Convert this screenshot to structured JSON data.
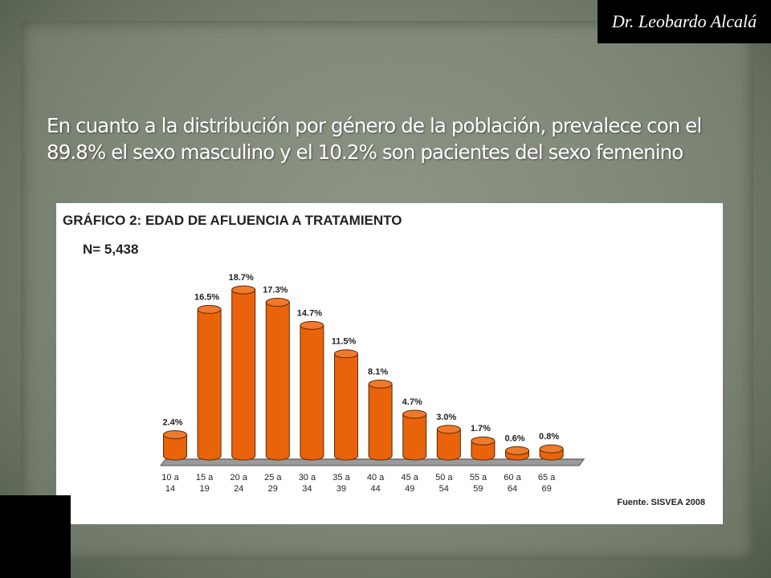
{
  "slide": {
    "author": "Dr. Leobardo Alcalá",
    "headline_line1": "En cuanto a la distribución por género de la población, prevalece con el",
    "headline_line2": "89.8% el sexo masculino y el 10.2% son pacientes del sexo femenino"
  },
  "colors": {
    "bar_fill": "#e8630a",
    "bar_top": "#f07a2a",
    "bar_stroke": "#5a2a05",
    "floor": "#6b6b6b"
  },
  "chart_data": {
    "type": "bar",
    "title": "GRÁFICO 2: EDAD DE AFLUENCIA A TRATAMIENTO",
    "subtitle": "N= 5,438",
    "source": "Fuente. SISVEA 2008",
    "categories": [
      [
        "10 a",
        "14"
      ],
      [
        "15 a",
        "19"
      ],
      [
        "20 a",
        "24"
      ],
      [
        "25 a",
        "29"
      ],
      [
        "30 a",
        "34"
      ],
      [
        "35 a",
        "39"
      ],
      [
        "40 a",
        "44"
      ],
      [
        "45 a",
        "49"
      ],
      [
        "50 a",
        "54"
      ],
      [
        "55 a",
        "59"
      ],
      [
        "60 a",
        "64"
      ],
      [
        "65 a",
        "69"
      ]
    ],
    "values": [
      2.4,
      16.5,
      18.7,
      17.3,
      14.7,
      11.5,
      8.1,
      4.7,
      3.0,
      1.7,
      0.6,
      0.8
    ],
    "data_labels": [
      "2.4%",
      "16.5%",
      "18.7%",
      "17.3%",
      "14.7%",
      "11.5%",
      "8.1%",
      "4.7%",
      "3.0%",
      "1.7%",
      "0.6%",
      "0.8%"
    ],
    "ylim": [
      0,
      20
    ],
    "grid": false,
    "legend": "none"
  }
}
